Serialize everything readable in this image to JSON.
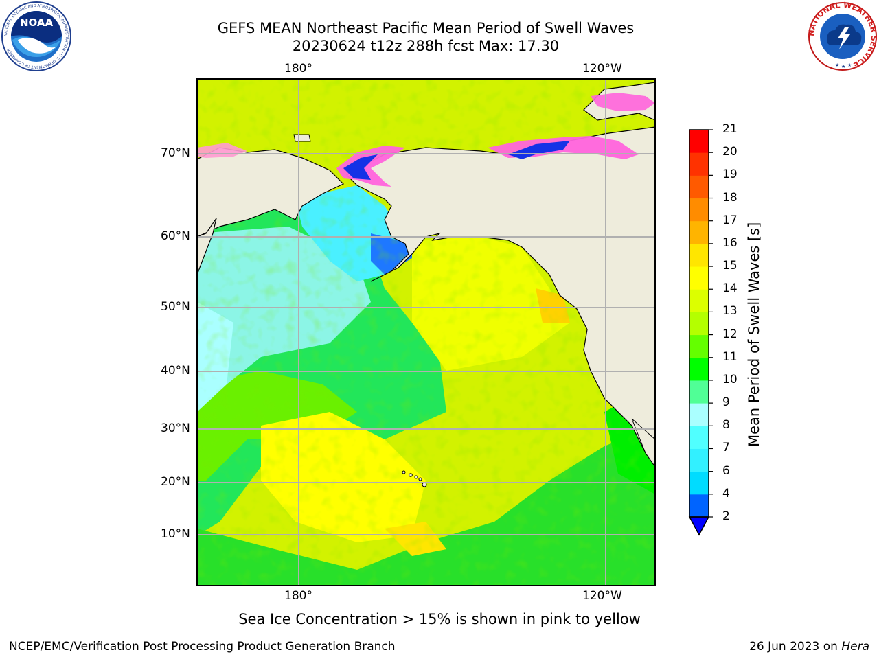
{
  "header": {
    "title_line1": "GEFS MEAN Northeast Pacific Mean Period of Swell Waves",
    "title_line2": "20230624 t12z 288h fcst   Max: 17.30"
  },
  "logos": {
    "left_text": "NOAA",
    "left_ring_text": "NATIONAL OCEANIC AND ATMOSPHERIC ADMINISTRATION · U.S. DEPARTMENT OF COMMERCE",
    "right_ring_text": "NATIONAL WEATHER SERVICE"
  },
  "map": {
    "lon_labels_top": [
      "180°",
      "120°W"
    ],
    "lon_labels_bottom": [
      "180°",
      "120°W"
    ],
    "lat_labels": [
      "70°N",
      "60°N",
      "50°N",
      "40°N",
      "30°N",
      "20°N",
      "10°N"
    ],
    "land_color": "#eeecdc",
    "grid_color": "#b0b0b0"
  },
  "colorbar": {
    "label": "Mean Period of Swell Waves [s]",
    "ticks": [
      "2",
      "4",
      "6",
      "7",
      "8",
      "9",
      "10",
      "11",
      "12",
      "13",
      "14",
      "15",
      "16",
      "17",
      "18",
      "19",
      "20",
      "21"
    ],
    "colors": [
      "#0064ff",
      "#00dcff",
      "#32f0ff",
      "#50ffff",
      "#aaffff",
      "#50ff96",
      "#00ff00",
      "#64ff00",
      "#b4ff00",
      "#dcff00",
      "#ffff00",
      "#ffe600",
      "#ffb400",
      "#ff8c00",
      "#ff5a00",
      "#ff3200",
      "#ff0000"
    ],
    "under_color": "#0000ff"
  },
  "caption": "Sea Ice Concentration > 15% is shown in pink to yellow",
  "footer": {
    "left": "NCEP/EMC/Verification Post Processing Product Generation Branch",
    "date": "26 Jun 2023 on ",
    "machine": "Hera"
  }
}
